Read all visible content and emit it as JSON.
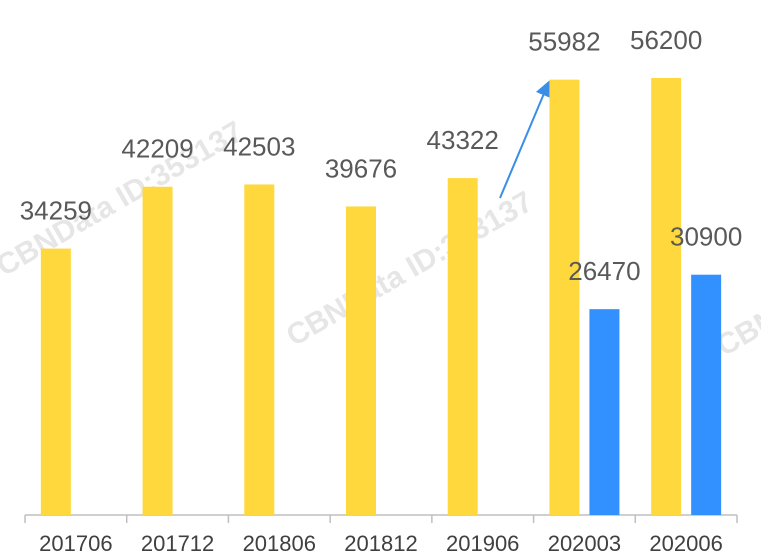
{
  "chart_data": {
    "type": "bar",
    "categories": [
      "201706",
      "201712",
      "201806",
      "201812",
      "201906",
      "202003",
      "202006"
    ],
    "series": [
      {
        "color": "#FFD83D",
        "values": [
          34259,
          42209,
          42503,
          39676,
          43322,
          55982,
          56200
        ]
      },
      {
        "color": "#3391FF",
        "values": [
          null,
          null,
          null,
          null,
          null,
          26470,
          30900
        ]
      }
    ],
    "ylim": [
      0,
      60000
    ],
    "watermark": "CBNData ID:353137"
  }
}
